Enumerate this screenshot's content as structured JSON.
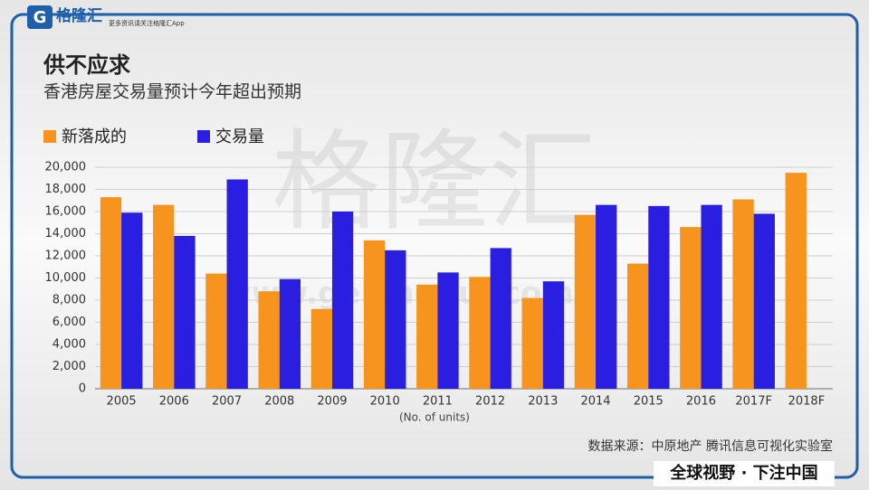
{
  "header": {
    "logo": "格隆汇",
    "tagline": "更多资讯请关注格隆汇App"
  },
  "watermark": {
    "text": "格隆汇",
    "url": "www.gelonghui.com"
  },
  "footer": {
    "slogan": "全球视野 · 下注中国"
  },
  "chart_data": {
    "type": "bar",
    "title": "供不应求",
    "subtitle": "香港房屋交易量预计今年超出预期",
    "x_label": "(No. of units)",
    "source": "数据来源：中原地产 腾讯信息可视化实验室",
    "categories": [
      "2005",
      "2006",
      "2007",
      "2008",
      "2009",
      "2010",
      "2011",
      "2012",
      "2013",
      "2014",
      "2015",
      "2016",
      "2017F",
      "2018F"
    ],
    "series": [
      {
        "name": "新落成的",
        "color": "#f7941d",
        "values": [
          17300,
          16600,
          10400,
          8800,
          7200,
          13400,
          9400,
          10100,
          8200,
          15700,
          11300,
          14600,
          17100,
          19500
        ]
      },
      {
        "name": "交易量",
        "color": "#2a1ee0",
        "values": [
          15900,
          13800,
          18900,
          9900,
          16000,
          12500,
          10500,
          12700,
          9700,
          16600,
          16500,
          16600,
          15800,
          null
        ]
      }
    ],
    "ylim": [
      0,
      20000
    ],
    "yticks": [
      0,
      {
        "value": 2000,
        "label": "2,000"
      },
      {
        "value": 4000,
        "label": "4,000"
      },
      {
        "value": 6000,
        "label": "6,000"
      },
      {
        "value": 8000,
        "label": "8,000"
      },
      {
        "value": 10000,
        "label": "10,000"
      },
      {
        "value": 12000,
        "label": "12,000"
      },
      {
        "value": 14000,
        "label": "14,000"
      },
      {
        "value": 16000,
        "label": "16,000"
      },
      {
        "value": 18000,
        "label": "18,000"
      },
      {
        "value": 20000,
        "label": "20,000"
      }
    ],
    "grid": true,
    "legend": "top-left"
  }
}
